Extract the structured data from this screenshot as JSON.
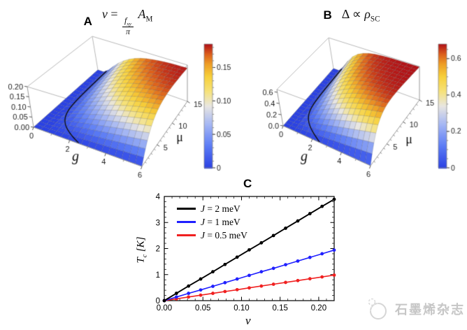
{
  "figure": {
    "background": "#ffffff"
  },
  "panel_a": {
    "label": "A",
    "title_text": "ν = (f_xy / π) A_M",
    "title_parts": {
      "nu": "ν",
      "eq": "=",
      "num_base": "f",
      "num_sub": "xy",
      "den": "π",
      "coef_base": "A",
      "coef_sub": "M"
    }
  },
  "panel_b": {
    "label": "B",
    "title_text": "Δ ∝ ρ_SC",
    "title_parts": {
      "delta": "Δ",
      "propto": "∝",
      "rho": "ρ",
      "rho_sub": "SC"
    }
  },
  "panel_c": {
    "label": "C",
    "ylabel_parts": {
      "base": "T",
      "sub": "c",
      "rest": " [K]"
    },
    "xlabel": "ν"
  },
  "watermark": {
    "text": "石墨烯杂志"
  },
  "chart_data": [
    {
      "id": "A",
      "type": "surface3d",
      "title": "ν = (f_xy/π) A_M",
      "x_axis": {
        "name": "g",
        "range": [
          0,
          6
        ],
        "tick_values": [
          0,
          2,
          4,
          6
        ],
        "tick_labels": [
          "0",
          "2",
          "4",
          "6"
        ]
      },
      "y_axis": {
        "name": "μ",
        "range": [
          0,
          15
        ],
        "tick_values": [
          5,
          10,
          15
        ],
        "tick_labels": [
          "5",
          "10",
          "15"
        ]
      },
      "z_axis": {
        "range": [
          0,
          0.2
        ],
        "tick_values": [
          0,
          0.05,
          0.1,
          0.15,
          0.2
        ],
        "tick_labels": [
          "0.00",
          "0.05",
          "0.10",
          "0.15",
          "0.20"
        ]
      },
      "colorbar": {
        "range": [
          0,
          0.185
        ],
        "tick_values": [
          0,
          0.05,
          0.1,
          0.15
        ],
        "tick_labels": [
          "0",
          "0.05",
          "0.10",
          "0.15"
        ],
        "minor_step": 0.01
      },
      "surface": {
        "vmax": 0.185,
        "g0": 0.5,
        "scale": 30,
        "description": "ν≈0 for small g or small μ (flat blue region); rises smoothly to ≈0.185 (red) at (g,μ)=(6,15); black curve marks onset boundary",
        "sample_grid": {
          "g": [
            0,
            2,
            4,
            6
          ],
          "mu": [
            0,
            5,
            10,
            15
          ],
          "values": [
            [
              0,
              0,
              0,
              0
            ],
            [
              0,
              0.045,
              0.086,
              0.118
            ],
            [
              0,
              0.097,
              0.152,
              0.174
            ],
            [
              0,
              0.134,
              0.176,
              0.184
            ]
          ]
        }
      },
      "contour": {
        "g_inf": 0.6,
        "amp": 1.9,
        "tau": 2.2,
        "description": "critical curve from (g≈2.5, μ=0) to (g≈0.6, μ=15)"
      }
    },
    {
      "id": "B",
      "type": "surface3d",
      "title": "Δ ∝ ρ_SC",
      "x_axis": {
        "name": "g",
        "range": [
          0,
          6
        ],
        "tick_values": [
          0,
          2,
          4,
          6
        ],
        "tick_labels": [
          "0",
          "2",
          "4",
          "6"
        ]
      },
      "y_axis": {
        "name": "μ",
        "range": [
          0,
          15
        ],
        "tick_values": [
          5,
          10,
          15
        ],
        "tick_labels": [
          "5",
          "10",
          "15"
        ]
      },
      "z_axis": {
        "range": [
          0,
          0.65
        ],
        "tick_values": [
          0,
          0.2,
          0.4,
          0.6
        ],
        "tick_labels": [
          "0.0",
          "0.2",
          "0.4",
          "0.6"
        ]
      },
      "colorbar": {
        "range": [
          0,
          0.68
        ],
        "tick_values": [
          0,
          0.2,
          0.4,
          0.6
        ],
        "tick_labels": [
          "0",
          "0.2",
          "0.4",
          "0.6"
        ],
        "minor_step": 0.05
      },
      "surface": {
        "vmax": 0.64,
        "g0": 0.5,
        "scale": 20,
        "description": "Δ≈0 for small g or small μ; rises to ≈0.64 at (g,μ)=(6,15); same onset boundary curve as panel A",
        "sample_grid": {
          "g": [
            0,
            2,
            4,
            6
          ],
          "mu": [
            0,
            5,
            10,
            15
          ],
          "values": [
            [
              0,
              0,
              0,
              0
            ],
            [
              0,
              0.229,
              0.407,
              0.518
            ],
            [
              0,
              0.45,
              0.603,
              0.633
            ],
            [
              0,
              0.563,
              0.635,
              0.64
            ]
          ]
        }
      },
      "contour": {
        "g_inf": 0.6,
        "amp": 1.9,
        "tau": 2.2,
        "description": "critical curve from (g≈2.3, μ=0) to (g≈0.6, μ=15)"
      }
    },
    {
      "id": "C",
      "type": "line",
      "title": "C",
      "xlabel": "ν",
      "ylabel": "T_c [K]",
      "xlim": [
        0,
        0.22
      ],
      "ylim": [
        0,
        4
      ],
      "x_tick_values": [
        0,
        0.05,
        0.1,
        0.15,
        0.2
      ],
      "x_tick_labels": [
        "0.00",
        "0.05",
        "0.10",
        "0.15",
        "0.20"
      ],
      "x_minor_step": 0.01,
      "y_tick_values": [
        0,
        1,
        2,
        3,
        4
      ],
      "y_tick_labels": [
        "0",
        "1",
        "2",
        "3",
        "4"
      ],
      "y_minor_step": 0.2,
      "legend_position": "top-left",
      "x": [
        0,
        0.0157,
        0.0314,
        0.0471,
        0.0629,
        0.0786,
        0.0943,
        0.11,
        0.1257,
        0.1414,
        0.1571,
        0.1729,
        0.1886,
        0.2043,
        0.22
      ],
      "series": [
        {
          "name": "J = 2 meV",
          "label_var": "J",
          "label_rest": " = 2 meV",
          "color": "#000000",
          "slope_K_per_nu": 17.7,
          "y": [
            0,
            0.28,
            0.56,
            0.83,
            1.11,
            1.39,
            1.67,
            1.95,
            2.22,
            2.5,
            2.78,
            3.06,
            3.34,
            3.62,
            3.89
          ]
        },
        {
          "name": "J = 1 meV",
          "label_var": "J",
          "label_rest": " = 1 meV",
          "color": "#2020ff",
          "slope_K_per_nu": 8.8,
          "y": [
            0,
            0.14,
            0.28,
            0.41,
            0.55,
            0.69,
            0.83,
            0.97,
            1.11,
            1.24,
            1.38,
            1.52,
            1.66,
            1.8,
            1.94
          ]
        },
        {
          "name": "J = 0.5 meV",
          "label_var": "J",
          "label_rest": " = 0.5 meV",
          "color": "#f02020",
          "slope_K_per_nu": 4.45,
          "y": [
            0,
            0.07,
            0.14,
            0.21,
            0.28,
            0.35,
            0.42,
            0.49,
            0.56,
            0.63,
            0.7,
            0.77,
            0.84,
            0.91,
            0.98
          ]
        }
      ]
    }
  ]
}
